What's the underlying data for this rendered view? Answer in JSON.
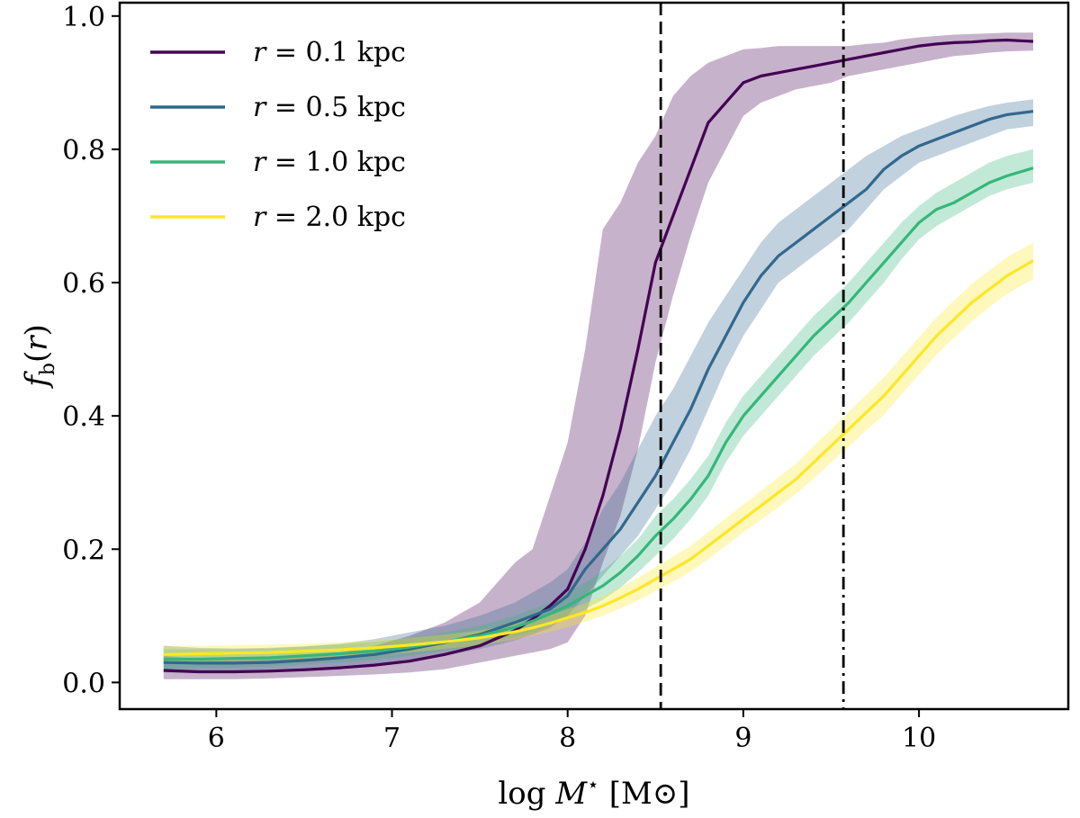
{
  "chart_data": {
    "type": "line",
    "title": "",
    "xlabel": "log M⋆ [M⊙]",
    "xlabel_parts": {
      "prefix": "log ",
      "var": "M",
      "sup": "⋆",
      "unit": " [M⊙]"
    },
    "ylabel": "f_b(r)",
    "ylabel_parts": {
      "var": "f",
      "sub": "b",
      "suffix_open": "(",
      "arg": "r",
      "suffix_close": ")"
    },
    "xlim": [
      5.45,
      10.85
    ],
    "ylim": [
      -0.04,
      1.02
    ],
    "xticks": [
      6,
      7,
      8,
      9,
      10
    ],
    "xtick_labels": [
      "6",
      "7",
      "8",
      "9",
      "10"
    ],
    "yticks": [
      0.0,
      0.2,
      0.4,
      0.6,
      0.8,
      1.0
    ],
    "ytick_labels": [
      "0.0",
      "0.2",
      "0.4",
      "0.6",
      "0.8",
      "1.0"
    ],
    "grid": false,
    "legend_position": "top-left",
    "vlines": [
      {
        "x": 8.53,
        "style": "dashed",
        "color": "#000000"
      },
      {
        "x": 9.57,
        "style": "dashdot",
        "color": "#000000"
      }
    ],
    "x": [
      5.7,
      5.9,
      6.1,
      6.3,
      6.5,
      6.7,
      6.9,
      7.1,
      7.3,
      7.5,
      7.7,
      7.8,
      7.9,
      8.0,
      8.1,
      8.2,
      8.3,
      8.4,
      8.5,
      8.6,
      8.7,
      8.8,
      8.9,
      9.0,
      9.1,
      9.2,
      9.3,
      9.4,
      9.5,
      9.6,
      9.7,
      9.8,
      9.9,
      10.0,
      10.1,
      10.2,
      10.3,
      10.4,
      10.5,
      10.65
    ],
    "series": [
      {
        "name": "r = 0.1 kpc",
        "label_var": "r",
        "label_value": "= 0.1 kpc",
        "color": "#440154",
        "values": [
          0.018,
          0.016,
          0.016,
          0.017,
          0.019,
          0.022,
          0.026,
          0.032,
          0.042,
          0.055,
          0.078,
          0.095,
          0.115,
          0.14,
          0.2,
          0.28,
          0.38,
          0.5,
          0.63,
          0.7,
          0.77,
          0.84,
          0.87,
          0.9,
          0.91,
          0.915,
          0.92,
          0.925,
          0.93,
          0.935,
          0.94,
          0.945,
          0.95,
          0.955,
          0.958,
          0.96,
          0.961,
          0.963,
          0.964,
          0.962
        ],
        "lower": [
          0.005,
          0.005,
          0.005,
          0.006,
          0.008,
          0.01,
          0.012,
          0.015,
          0.02,
          0.03,
          0.04,
          0.045,
          0.05,
          0.06,
          0.1,
          0.18,
          0.25,
          0.35,
          0.48,
          0.58,
          0.67,
          0.75,
          0.8,
          0.85,
          0.87,
          0.88,
          0.89,
          0.895,
          0.9,
          0.91,
          0.915,
          0.92,
          0.925,
          0.93,
          0.935,
          0.94,
          0.942,
          0.945,
          0.947,
          0.948
        ],
        "upper": [
          0.04,
          0.035,
          0.035,
          0.037,
          0.04,
          0.045,
          0.055,
          0.07,
          0.09,
          0.12,
          0.18,
          0.2,
          0.28,
          0.36,
          0.5,
          0.68,
          0.72,
          0.78,
          0.82,
          0.88,
          0.91,
          0.93,
          0.94,
          0.95,
          0.952,
          0.955,
          0.955,
          0.955,
          0.955,
          0.955,
          0.958,
          0.96,
          0.965,
          0.968,
          0.97,
          0.972,
          0.973,
          0.974,
          0.975,
          0.975
        ]
      },
      {
        "name": "r = 0.5 kpc",
        "label_var": "r",
        "label_value": "= 0.5 kpc",
        "color": "#31688e",
        "values": [
          0.03,
          0.029,
          0.029,
          0.03,
          0.033,
          0.037,
          0.042,
          0.05,
          0.06,
          0.072,
          0.09,
          0.1,
          0.11,
          0.13,
          0.17,
          0.2,
          0.23,
          0.27,
          0.31,
          0.36,
          0.41,
          0.47,
          0.52,
          0.57,
          0.61,
          0.64,
          0.66,
          0.68,
          0.7,
          0.72,
          0.74,
          0.77,
          0.79,
          0.805,
          0.815,
          0.825,
          0.835,
          0.845,
          0.852,
          0.857
        ],
        "lower": [
          0.015,
          0.014,
          0.015,
          0.016,
          0.019,
          0.022,
          0.026,
          0.032,
          0.04,
          0.05,
          0.063,
          0.072,
          0.082,
          0.1,
          0.13,
          0.16,
          0.19,
          0.22,
          0.26,
          0.3,
          0.35,
          0.41,
          0.47,
          0.52,
          0.56,
          0.6,
          0.62,
          0.64,
          0.66,
          0.68,
          0.71,
          0.74,
          0.76,
          0.78,
          0.79,
          0.8,
          0.81,
          0.82,
          0.83,
          0.835
        ],
        "upper": [
          0.055,
          0.052,
          0.051,
          0.052,
          0.054,
          0.058,
          0.065,
          0.075,
          0.085,
          0.1,
          0.12,
          0.135,
          0.15,
          0.17,
          0.21,
          0.26,
          0.3,
          0.35,
          0.4,
          0.44,
          0.49,
          0.54,
          0.58,
          0.62,
          0.66,
          0.69,
          0.71,
          0.73,
          0.75,
          0.77,
          0.79,
          0.805,
          0.82,
          0.83,
          0.84,
          0.85,
          0.858,
          0.865,
          0.87,
          0.875
        ]
      },
      {
        "name": "r = 1.0 kpc",
        "label_var": "r",
        "label_value": "= 1.0 kpc",
        "color": "#35b779",
        "values": [
          0.035,
          0.035,
          0.036,
          0.037,
          0.04,
          0.043,
          0.047,
          0.053,
          0.061,
          0.07,
          0.083,
          0.092,
          0.103,
          0.115,
          0.13,
          0.145,
          0.165,
          0.19,
          0.22,
          0.245,
          0.275,
          0.31,
          0.36,
          0.4,
          0.43,
          0.46,
          0.49,
          0.52,
          0.545,
          0.57,
          0.6,
          0.63,
          0.66,
          0.69,
          0.71,
          0.72,
          0.735,
          0.75,
          0.76,
          0.772
        ],
        "lower": [
          0.02,
          0.021,
          0.022,
          0.024,
          0.027,
          0.03,
          0.034,
          0.04,
          0.048,
          0.056,
          0.068,
          0.076,
          0.086,
          0.097,
          0.11,
          0.124,
          0.142,
          0.165,
          0.19,
          0.215,
          0.245,
          0.28,
          0.33,
          0.37,
          0.4,
          0.43,
          0.46,
          0.49,
          0.515,
          0.54,
          0.57,
          0.6,
          0.635,
          0.665,
          0.685,
          0.7,
          0.715,
          0.73,
          0.74,
          0.75
        ],
        "upper": [
          0.05,
          0.05,
          0.05,
          0.051,
          0.054,
          0.057,
          0.061,
          0.067,
          0.075,
          0.085,
          0.1,
          0.11,
          0.12,
          0.134,
          0.15,
          0.168,
          0.19,
          0.215,
          0.25,
          0.275,
          0.305,
          0.34,
          0.39,
          0.43,
          0.46,
          0.49,
          0.52,
          0.55,
          0.575,
          0.6,
          0.63,
          0.66,
          0.69,
          0.715,
          0.735,
          0.75,
          0.765,
          0.78,
          0.79,
          0.8
        ]
      },
      {
        "name": "r = 2.0 kpc",
        "label_var": "r",
        "label_value": "= 2.0 kpc",
        "color": "#fde725",
        "values": [
          0.042,
          0.043,
          0.044,
          0.045,
          0.047,
          0.049,
          0.052,
          0.056,
          0.061,
          0.067,
          0.076,
          0.082,
          0.089,
          0.097,
          0.105,
          0.115,
          0.127,
          0.14,
          0.155,
          0.17,
          0.185,
          0.205,
          0.225,
          0.245,
          0.265,
          0.285,
          0.305,
          0.33,
          0.355,
          0.38,
          0.405,
          0.43,
          0.46,
          0.49,
          0.52,
          0.545,
          0.57,
          0.59,
          0.61,
          0.633
        ],
        "lower": [
          0.03,
          0.031,
          0.032,
          0.034,
          0.036,
          0.038,
          0.041,
          0.045,
          0.05,
          0.056,
          0.064,
          0.07,
          0.076,
          0.083,
          0.091,
          0.1,
          0.111,
          0.123,
          0.137,
          0.151,
          0.166,
          0.185,
          0.205,
          0.225,
          0.244,
          0.263,
          0.283,
          0.306,
          0.33,
          0.354,
          0.378,
          0.402,
          0.432,
          0.462,
          0.492,
          0.517,
          0.542,
          0.563,
          0.583,
          0.605
        ],
        "upper": [
          0.055,
          0.055,
          0.056,
          0.057,
          0.058,
          0.06,
          0.063,
          0.067,
          0.072,
          0.078,
          0.088,
          0.094,
          0.101,
          0.11,
          0.119,
          0.13,
          0.143,
          0.157,
          0.173,
          0.189,
          0.205,
          0.226,
          0.246,
          0.267,
          0.287,
          0.308,
          0.328,
          0.355,
          0.38,
          0.406,
          0.432,
          0.458,
          0.488,
          0.518,
          0.548,
          0.573,
          0.598,
          0.618,
          0.638,
          0.66
        ]
      }
    ]
  }
}
